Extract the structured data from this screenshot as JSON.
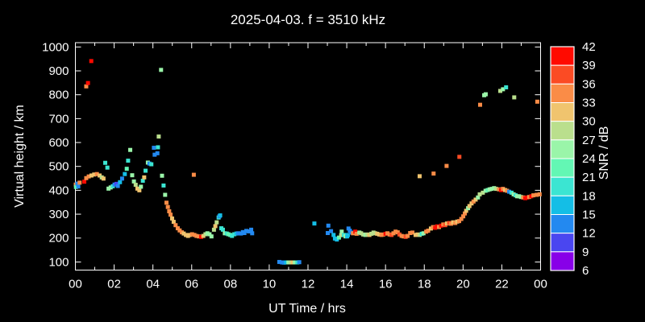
{
  "title": "2025-04-03. f = 3510 kHz",
  "colors": {
    "background": "#000000",
    "foreground": "#ffffff"
  },
  "axes": {
    "x": {
      "label": "UT Time / hrs",
      "tick_hours": [
        0,
        2,
        4,
        6,
        8,
        10,
        12,
        14,
        16,
        18,
        20,
        22,
        24
      ],
      "tick_labels": [
        "00",
        "02",
        "04",
        "06",
        "08",
        "10",
        "12",
        "14",
        "16",
        "18",
        "20",
        "22",
        "00"
      ],
      "minor_tick_every_hours": 1,
      "range_hours": [
        0,
        24
      ]
    },
    "y": {
      "label": "Virtual height / km",
      "ticks": [
        100,
        200,
        300,
        400,
        500,
        600,
        700,
        800,
        900,
        1000
      ],
      "range": [
        66,
        1018
      ]
    }
  },
  "colorbar": {
    "label": "SNR / dB",
    "tick_values": [
      42,
      39,
      36,
      33,
      30,
      27,
      24,
      21,
      18,
      15,
      12,
      9,
      6
    ],
    "range": [
      6,
      42
    ],
    "segment_colors_top_to_bottom": [
      "#ff0a00",
      "#fb4b24",
      "#fa8c47",
      "#f0c46e",
      "#badf8d",
      "#9af5a9",
      "#63f7b4",
      "#3be5d2",
      "#14bee6",
      "#2389f0",
      "#4a46f0",
      "#8800e8"
    ]
  },
  "chart_data": {
    "type": "scatter",
    "title": "2025-04-03. f = 3510 kHz",
    "xlabel": "UT Time / hrs",
    "ylabel": "Virtual height / km",
    "color_label": "SNR / dB",
    "x_units": "hours UT",
    "y_units": "km",
    "color_units": "dB",
    "marker": "square",
    "points_format": [
      "hour_ut",
      "virtual_height_km",
      "snr_db"
    ],
    "points": [
      [
        0.02,
        424,
        34
      ],
      [
        0.03,
        414,
        22
      ],
      [
        0.1,
        428,
        13
      ],
      [
        0.15,
        416,
        13
      ],
      [
        0.22,
        432,
        34
      ],
      [
        0.46,
        436,
        40
      ],
      [
        0.56,
        451,
        34
      ],
      [
        0.69,
        458,
        34
      ],
      [
        0.83,
        462,
        31
      ],
      [
        0.97,
        466,
        31
      ],
      [
        1.11,
        468,
        34
      ],
      [
        1.25,
        462,
        31
      ],
      [
        1.36,
        454,
        28
      ],
      [
        1.45,
        449,
        31
      ],
      [
        1.54,
        515,
        19
      ],
      [
        1.65,
        495,
        19
      ],
      [
        1.71,
        407,
        25
      ],
      [
        1.82,
        412,
        25
      ],
      [
        1.93,
        417,
        19
      ],
      [
        2.02,
        424,
        13
      ],
      [
        2.12,
        427,
        10
      ],
      [
        2.19,
        418,
        13
      ],
      [
        2.3,
        434,
        16
      ],
      [
        2.41,
        449,
        13
      ],
      [
        2.55,
        468,
        16
      ],
      [
        2.65,
        490,
        22
      ],
      [
        2.72,
        524,
        19
      ],
      [
        2.83,
        569,
        25
      ],
      [
        2.93,
        463,
        25
      ],
      [
        3.02,
        437,
        25
      ],
      [
        3.11,
        423,
        28
      ],
      [
        3.2,
        407,
        31
      ],
      [
        3.3,
        400,
        31
      ],
      [
        3.38,
        415,
        25
      ],
      [
        3.48,
        440,
        19
      ],
      [
        3.55,
        454,
        31
      ],
      [
        3.62,
        482,
        19
      ],
      [
        3.74,
        516,
        25
      ],
      [
        3.82,
        512,
        13
      ],
      [
        3.92,
        509,
        19
      ],
      [
        4.05,
        578,
        13
      ],
      [
        4.09,
        549,
        13
      ],
      [
        4.23,
        555,
        13
      ],
      [
        4.26,
        580,
        19
      ],
      [
        4.3,
        625,
        28
      ],
      [
        4.42,
        904,
        25
      ],
      [
        4.47,
        461,
        25
      ],
      [
        4.55,
        420,
        19
      ],
      [
        4.63,
        381,
        25
      ],
      [
        4.7,
        348,
        34
      ],
      [
        4.77,
        330,
        34
      ],
      [
        4.84,
        312,
        34
      ],
      [
        4.91,
        298,
        34
      ],
      [
        4.99,
        282,
        31
      ],
      [
        5.07,
        268,
        31
      ],
      [
        5.17,
        254,
        34
      ],
      [
        5.28,
        241,
        34
      ],
      [
        5.38,
        232,
        34
      ],
      [
        5.49,
        224,
        34
      ],
      [
        5.59,
        219,
        31
      ],
      [
        5.7,
        213,
        31
      ],
      [
        5.81,
        209,
        31
      ],
      [
        5.9,
        213,
        31
      ],
      [
        6.02,
        216,
        34
      ],
      [
        6.11,
        465,
        34
      ],
      [
        6.14,
        213,
        34
      ],
      [
        6.25,
        209,
        34
      ],
      [
        6.37,
        207,
        34
      ],
      [
        6.49,
        205,
        40
      ],
      [
        6.6,
        209,
        31
      ],
      [
        6.71,
        216,
        28
      ],
      [
        6.81,
        220,
        25
      ],
      [
        6.92,
        216,
        25
      ],
      [
        7.02,
        207,
        25
      ],
      [
        7.15,
        235,
        28
      ],
      [
        7.22,
        250,
        31
      ],
      [
        7.29,
        266,
        28
      ],
      [
        7.39,
        286,
        19
      ],
      [
        7.43,
        291,
        13
      ],
      [
        7.47,
        295,
        16
      ],
      [
        7.53,
        241,
        19
      ],
      [
        7.61,
        235,
        19
      ],
      [
        7.71,
        220,
        25
      ],
      [
        7.81,
        219,
        19
      ],
      [
        7.89,
        216,
        22
      ],
      [
        7.99,
        213,
        22
      ],
      [
        8.08,
        209,
        19
      ],
      [
        8.2,
        216,
        19
      ],
      [
        8.31,
        219,
        16
      ],
      [
        8.4,
        220,
        13
      ],
      [
        8.54,
        219,
        13
      ],
      [
        8.64,
        225,
        13
      ],
      [
        8.72,
        221,
        13
      ],
      [
        8.82,
        230,
        13
      ],
      [
        8.95,
        228,
        13
      ],
      [
        9.07,
        235,
        13
      ],
      [
        9.12,
        220,
        13
      ],
      [
        10.52,
        100,
        13
      ],
      [
        10.66,
        98,
        13
      ],
      [
        10.76,
        97,
        13
      ],
      [
        10.87,
        98,
        16
      ],
      [
        10.99,
        98,
        25
      ],
      [
        11.1,
        98,
        28
      ],
      [
        11.21,
        98,
        31
      ],
      [
        11.32,
        98,
        25
      ],
      [
        11.45,
        98,
        19
      ],
      [
        11.55,
        99,
        13
      ],
      [
        12.33,
        261,
        16
      ],
      [
        13.02,
        221,
        13
      ],
      [
        13.05,
        252,
        13
      ],
      [
        13.19,
        229,
        13
      ],
      [
        13.32,
        213,
        16
      ],
      [
        13.39,
        198,
        16
      ],
      [
        13.49,
        194,
        16
      ],
      [
        13.6,
        202,
        22
      ],
      [
        13.71,
        212,
        28
      ],
      [
        13.74,
        227,
        25
      ],
      [
        13.85,
        213,
        19
      ],
      [
        13.94,
        207,
        25
      ],
      [
        14.02,
        207,
        16
      ],
      [
        14.06,
        213,
        16
      ],
      [
        14.09,
        240,
        13
      ],
      [
        14.16,
        231,
        13
      ],
      [
        14.23,
        223,
        13
      ],
      [
        14.32,
        220,
        34
      ],
      [
        14.44,
        227,
        40
      ],
      [
        14.51,
        218,
        34
      ],
      [
        14.65,
        223,
        25
      ],
      [
        14.74,
        220,
        28
      ],
      [
        14.85,
        215,
        28
      ],
      [
        14.96,
        213,
        25
      ],
      [
        15.06,
        215,
        28
      ],
      [
        15.17,
        213,
        31
      ],
      [
        15.27,
        218,
        28
      ],
      [
        15.38,
        223,
        28
      ],
      [
        15.47,
        220,
        28
      ],
      [
        15.57,
        218,
        31
      ],
      [
        15.68,
        215,
        31
      ],
      [
        15.79,
        213,
        34
      ],
      [
        15.89,
        215,
        34
      ],
      [
        16.0,
        218,
        40
      ],
      [
        16.1,
        220,
        34
      ],
      [
        16.21,
        215,
        34
      ],
      [
        16.31,
        213,
        37
      ],
      [
        16.41,
        220,
        34
      ],
      [
        16.52,
        227,
        34
      ],
      [
        16.63,
        224,
        34
      ],
      [
        16.72,
        215,
        37
      ],
      [
        16.83,
        209,
        34
      ],
      [
        16.93,
        207,
        34
      ],
      [
        17.04,
        205,
        37
      ],
      [
        17.14,
        209,
        34
      ],
      [
        17.27,
        221,
        34
      ],
      [
        17.39,
        223,
        34
      ],
      [
        17.55,
        213,
        31
      ],
      [
        17.65,
        215,
        31
      ],
      [
        17.76,
        213,
        28
      ],
      [
        17.87,
        218,
        19
      ],
      [
        17.96,
        220,
        25
      ],
      [
        18.1,
        227,
        34
      ],
      [
        18.2,
        231,
        34
      ],
      [
        18.34,
        240,
        31
      ],
      [
        18.45,
        246,
        34
      ],
      [
        18.56,
        243,
        40
      ],
      [
        18.66,
        249,
        40
      ],
      [
        18.76,
        246,
        34
      ],
      [
        18.87,
        252,
        40
      ],
      [
        18.98,
        257,
        34
      ],
      [
        19.08,
        254,
        37
      ],
      [
        19.17,
        261,
        31
      ],
      [
        19.28,
        263,
        37
      ],
      [
        19.38,
        260,
        34
      ],
      [
        19.49,
        266,
        31
      ],
      [
        19.6,
        263,
        34
      ],
      [
        19.7,
        269,
        31
      ],
      [
        19.8,
        271,
        34
      ],
      [
        19.91,
        280,
        34
      ],
      [
        20.01,
        291,
        34
      ],
      [
        20.09,
        303,
        34
      ],
      [
        20.16,
        314,
        31
      ],
      [
        20.26,
        325,
        25
      ],
      [
        20.33,
        334,
        31
      ],
      [
        20.44,
        345,
        31
      ],
      [
        20.54,
        353,
        34
      ],
      [
        20.65,
        361,
        31
      ],
      [
        20.77,
        370,
        25
      ],
      [
        20.86,
        383,
        28
      ],
      [
        21.02,
        390,
        28
      ],
      [
        21.16,
        398,
        25
      ],
      [
        21.27,
        401,
        22
      ],
      [
        21.37,
        404,
        25
      ],
      [
        21.48,
        406,
        25
      ],
      [
        21.6,
        409,
        25
      ],
      [
        21.71,
        406,
        28
      ],
      [
        21.85,
        404,
        34
      ],
      [
        21.96,
        401,
        40
      ],
      [
        22.06,
        406,
        34
      ],
      [
        22.17,
        401,
        31
      ],
      [
        22.27,
        398,
        34
      ],
      [
        22.38,
        394,
        13
      ],
      [
        22.5,
        390,
        19
      ],
      [
        22.61,
        383,
        25
      ],
      [
        22.71,
        379,
        19
      ],
      [
        22.79,
        375,
        25
      ],
      [
        22.89,
        375,
        25
      ],
      [
        22.99,
        372,
        25
      ],
      [
        23.1,
        370,
        34
      ],
      [
        23.21,
        367,
        40
      ],
      [
        23.31,
        370,
        40
      ],
      [
        23.41,
        372,
        34
      ],
      [
        23.52,
        375,
        40
      ],
      [
        23.63,
        379,
        34
      ],
      [
        23.8,
        381,
        34
      ],
      [
        23.95,
        383,
        34
      ],
      [
        17.76,
        459,
        31
      ],
      [
        18.48,
        470,
        34
      ],
      [
        19.15,
        502,
        34
      ],
      [
        19.81,
        540,
        37
      ],
      [
        20.88,
        758,
        34
      ],
      [
        21.09,
        798,
        25
      ],
      [
        21.17,
        802,
        25
      ],
      [
        21.92,
        816,
        28
      ],
      [
        22.06,
        823,
        25
      ],
      [
        22.22,
        831,
        19
      ],
      [
        22.64,
        789,
        28
      ],
      [
        23.83,
        771,
        34
      ],
      [
        0.56,
        835,
        34
      ],
      [
        0.65,
        849,
        40
      ],
      [
        0.82,
        941,
        40
      ]
    ]
  }
}
